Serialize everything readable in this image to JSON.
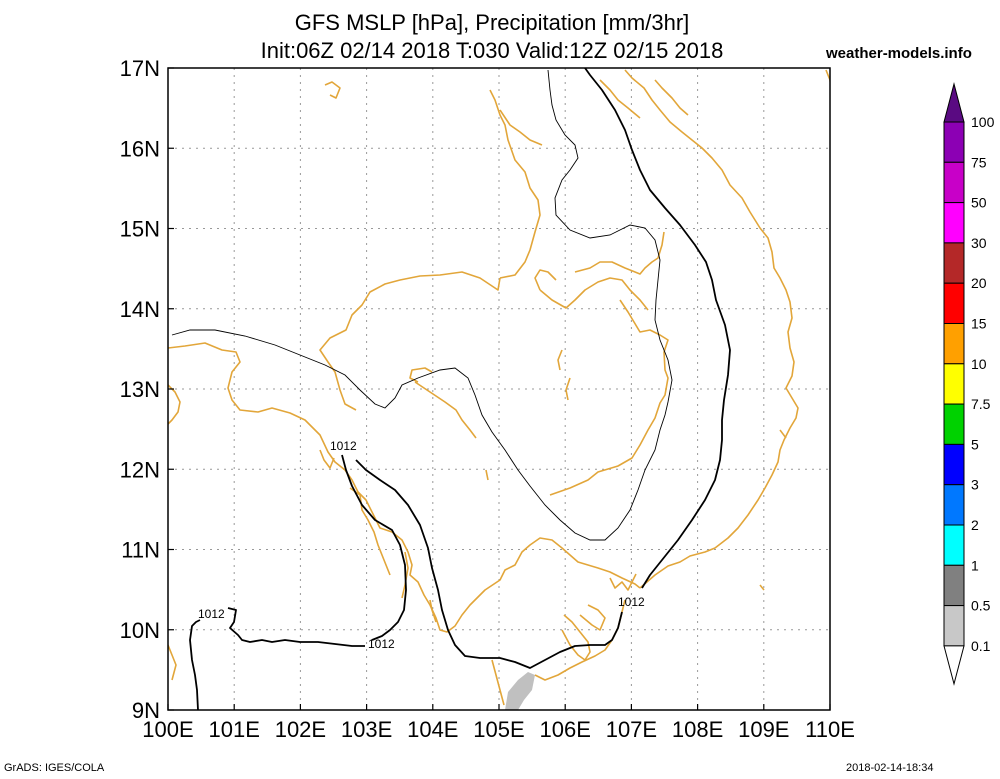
{
  "header": {
    "line1": "GFS MSLP [hPa], Precipitation [mm/3hr]",
    "line2": "Init:06Z 02/14 2018 T:030 Valid:12Z 02/15 2018",
    "site": "weather-models.info"
  },
  "footer": {
    "left": "GrADS: IGES/COLA",
    "right": "2018-02-14-18:34"
  },
  "axes": {
    "lon_labels": [
      "100E",
      "101E",
      "102E",
      "103E",
      "104E",
      "105E",
      "106E",
      "107E",
      "108E",
      "109E",
      "110E"
    ],
    "lat_labels": [
      "17N",
      "16N",
      "15N",
      "14N",
      "13N",
      "12N",
      "11N",
      "10N",
      "9N"
    ]
  },
  "isobar_labels": [
    "1012",
    "1012",
    "1012",
    "1012"
  ],
  "colorbar": {
    "labels": [
      "100",
      "75",
      "50",
      "30",
      "20",
      "15",
      "10",
      "7.5",
      "5",
      "3",
      "2",
      "1",
      "0.5",
      "0.1"
    ],
    "colors": [
      "#5a0a82",
      "#8c00b4",
      "#c800c8",
      "#ff00ff",
      "#b42828",
      "#ff0000",
      "#ffa000",
      "#ffff00",
      "#00d200",
      "#0000ff",
      "#0078ff",
      "#00ffff",
      "#808080",
      "#c8c8c8",
      "#ffffff"
    ]
  },
  "colors": {
    "coastline": "#e2a63a",
    "isobar": "#000000",
    "grid": "#999999",
    "precip_light": "#c0c0c0"
  }
}
